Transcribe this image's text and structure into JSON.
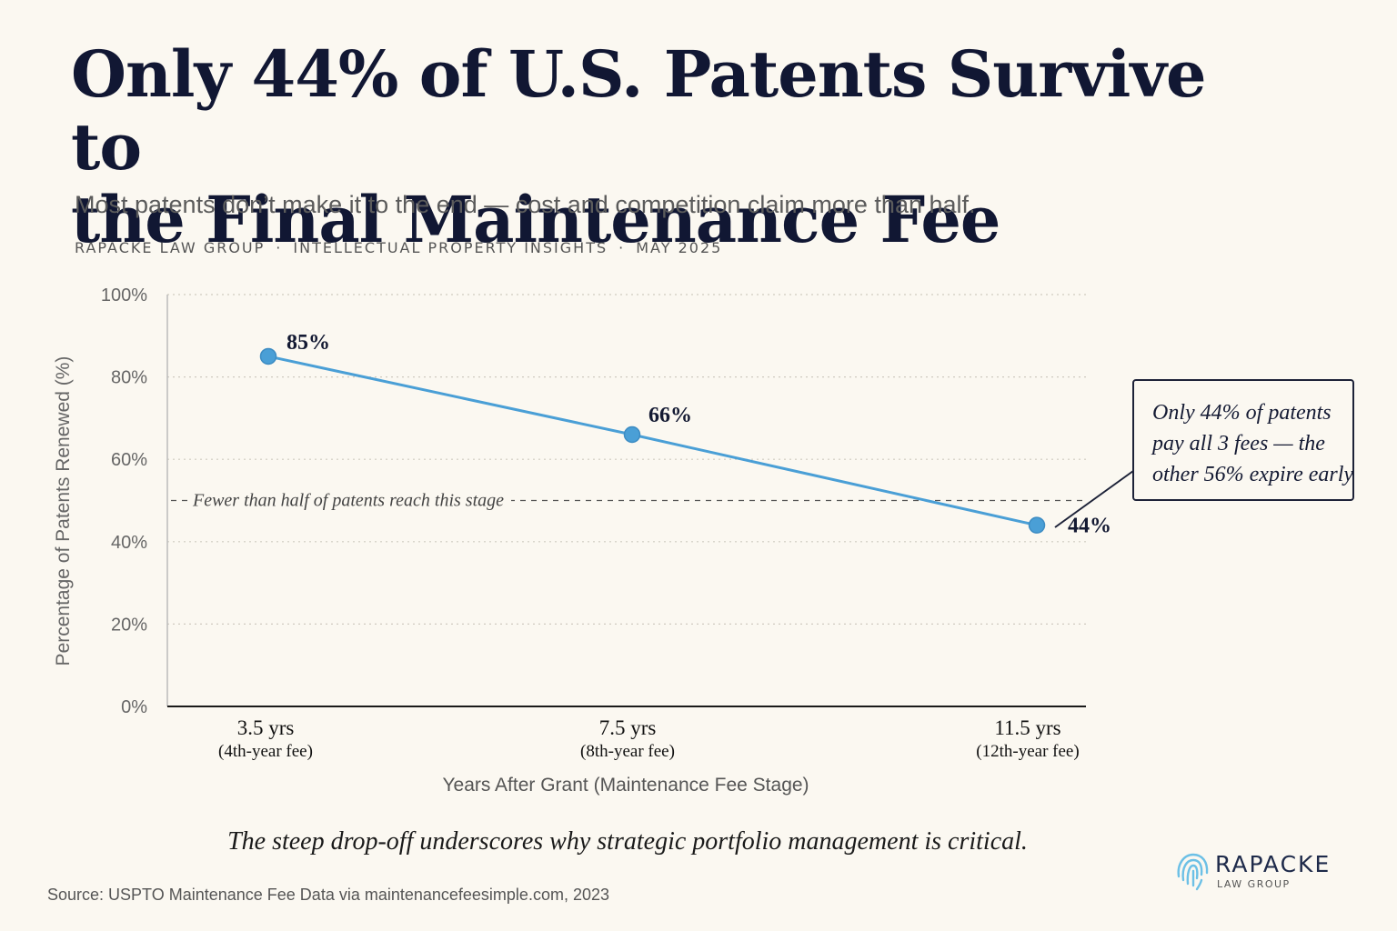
{
  "header": {
    "title_lines": [
      "Only 44% of U.S. Patents Survive to",
      "the Final Maintenance Fee"
    ],
    "subtitle": "Most patents don’t make it to the end — cost and competition claim more than half.",
    "meta": [
      "RAPACKE LAW GROUP",
      "INTELLECTUAL PROPERTY INSIGHTS",
      "MAY 2025"
    ],
    "meta_separator": "·"
  },
  "chart_data": {
    "type": "line",
    "categories": [
      "3.5 yrs",
      "7.5 yrs",
      "11.5 yrs"
    ],
    "category_sublabels": [
      "(4th-year fee)",
      "(8th-year fee)",
      "(12th-year fee)"
    ],
    "series": [
      {
        "values": [
          85,
          66,
          44
        ],
        "color": "#4a9fd6"
      }
    ],
    "data_labels": [
      "85%",
      "66%",
      "44%"
    ],
    "ylabel": "Percentage of Patents Renewed (%)",
    "xlabel": "Years After Grant (Maintenance Fee Stage)",
    "ylim": [
      0,
      100
    ],
    "yticks": [
      0,
      20,
      40,
      60,
      80,
      100
    ],
    "ytick_labels": [
      "0%",
      "20%",
      "40%",
      "60%",
      "80%",
      "100%"
    ],
    "grid": true,
    "reference_line": {
      "value": 50,
      "label": "Fewer than half of patents reach this stage"
    }
  },
  "callout": {
    "lines": [
      "Only 44% of patents",
      "pay all 3 fees — the",
      "other 56% expire early"
    ]
  },
  "caption": "The steep drop-off underscores why strategic portfolio management is critical.",
  "source": "Source:  USPTO Maintenance Fee Data via maintenancefeesimple.com, 2023",
  "logo": {
    "brand": "RAPACKE",
    "sub": "LAW GROUP",
    "icon": "fingerprint-icon"
  }
}
